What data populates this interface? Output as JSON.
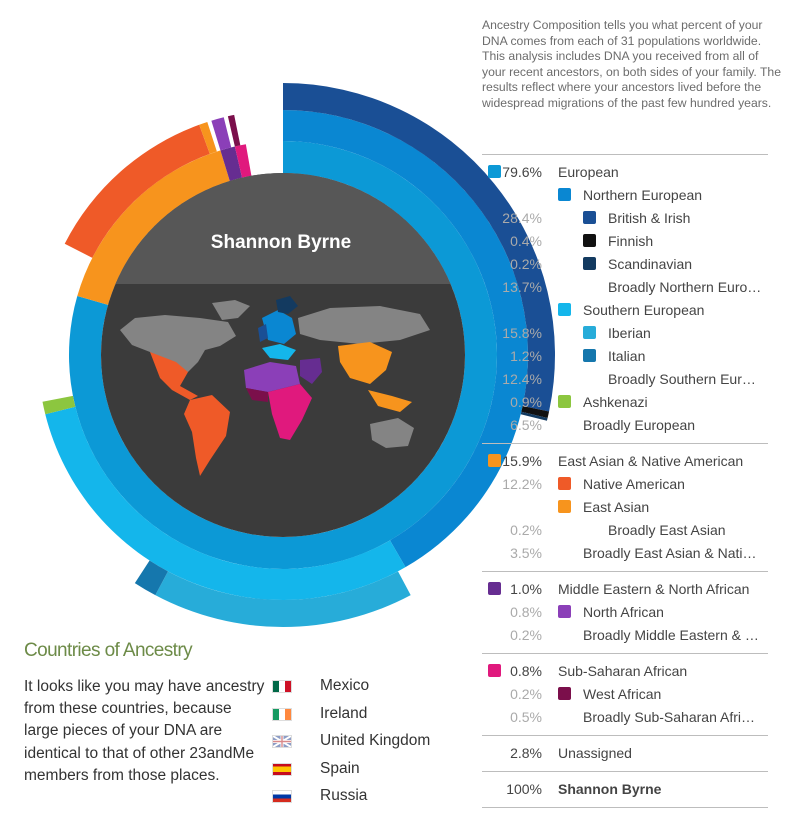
{
  "header": {
    "name": "Shannon Byrne",
    "intro": "Ancestry Composition tells you what percent of your DNA comes from each of 31 populations worldwide. This analysis includes DNA you received from all of your recent ancestors, on both sides of your family. The results reflect where your ancestors lived before the widespread migrations of the past few hundred years."
  },
  "colors": {
    "european": "#0c99d6",
    "northern_european": "#0a87d2",
    "british_irish": "#1a4f95",
    "finnish": "#111111",
    "scandinavian": "#133a60",
    "southern_european": "#14b6eb",
    "iberian": "#27acd9",
    "italian": "#1577ad",
    "ashkenazi": "#8cc63f",
    "east_asian_native_american": "#f7941d",
    "native_american": "#ef5a28",
    "east_asian": "#f7941d",
    "middle_eastern": "#662d91",
    "north_african": "#8b3fb8",
    "sub_saharan": "#e0197d",
    "west_african": "#7b0f4b",
    "map_gray": "#848484",
    "center_dark": "#3b3b3b",
    "center_header": "#575757"
  },
  "chart_data": {
    "type": "sunburst",
    "title": "Shannon Byrne",
    "rings": {
      "inner": [
        {
          "name": "European",
          "value": 79.6
        },
        {
          "name": "East Asian & Native American",
          "value": 15.9
        },
        {
          "name": "Middle Eastern & North African",
          "value": 1.0
        },
        {
          "name": "Sub-Saharan African",
          "value": 0.8
        },
        {
          "name": "Unassigned",
          "value": 2.8
        }
      ],
      "middle": [
        {
          "name": "Northern European",
          "parent": "European"
        },
        {
          "name": "Southern European",
          "parent": "European"
        },
        {
          "name": "Ashkenazi",
          "value": 0.9,
          "parent": "European"
        },
        {
          "name": "Native American",
          "value": 12.2,
          "parent": "East Asian & Native American"
        },
        {
          "name": "East Asian",
          "parent": "East Asian & Native American"
        },
        {
          "name": "North African",
          "value": 0.8,
          "parent": "Middle Eastern & North African"
        },
        {
          "name": "West African",
          "value": 0.2,
          "parent": "Sub-Saharan African"
        }
      ],
      "outer": [
        {
          "name": "British & Irish",
          "value": 28.4
        },
        {
          "name": "Finnish",
          "value": 0.4
        },
        {
          "name": "Scandinavian",
          "value": 0.2
        },
        {
          "name": "Iberian",
          "value": 15.8
        },
        {
          "name": "Italian",
          "value": 1.2
        }
      ]
    }
  },
  "legend": {
    "groups": [
      {
        "rows": [
          {
            "level": 0,
            "pct": "79.6%",
            "label": "European",
            "color": "#0c99d6"
          },
          {
            "level": 1,
            "pct": "",
            "label": "Northern European",
            "color": "#0a87d2"
          },
          {
            "level": 2,
            "pct": "28.4%",
            "label": "British & Irish",
            "color": "#1a4f95"
          },
          {
            "level": 2,
            "pct": "0.4%",
            "label": "Finnish",
            "color": "#111111"
          },
          {
            "level": 2,
            "pct": "0.2%",
            "label": "Scandinavian",
            "color": "#133a60"
          },
          {
            "level": 2,
            "pct": "13.7%",
            "label": "Broadly Northern Euro…",
            "color": ""
          },
          {
            "level": 1,
            "pct": "",
            "label": "Southern European",
            "color": "#14b6eb"
          },
          {
            "level": 2,
            "pct": "15.8%",
            "label": "Iberian",
            "color": "#27acd9"
          },
          {
            "level": 2,
            "pct": "1.2%",
            "label": "Italian",
            "color": "#1577ad"
          },
          {
            "level": 2,
            "pct": "12.4%",
            "label": "Broadly Southern Eur…",
            "color": ""
          },
          {
            "level": 1,
            "pct": "0.9%",
            "label": "Ashkenazi",
            "color": "#8cc63f"
          },
          {
            "level": 1,
            "pct": "6.5%",
            "label": "Broadly European",
            "color": ""
          }
        ]
      },
      {
        "rows": [
          {
            "level": 0,
            "pct": "15.9%",
            "label": "East Asian & Native American",
            "color": "#f7941d"
          },
          {
            "level": 1,
            "pct": "12.2%",
            "label": "Native American",
            "color": "#ef5a28"
          },
          {
            "level": 1,
            "pct": "",
            "label": "East Asian",
            "color": "#f7941d"
          },
          {
            "level": 2,
            "pct": "0.2%",
            "label": "Broadly East Asian",
            "color": ""
          },
          {
            "level": 1,
            "pct": "3.5%",
            "label": "Broadly East Asian & Nati…",
            "color": ""
          }
        ]
      },
      {
        "rows": [
          {
            "level": 0,
            "pct": "1.0%",
            "label": "Middle Eastern & North African",
            "color": "#662d91"
          },
          {
            "level": 1,
            "pct": "0.8%",
            "label": "North African",
            "color": "#8b3fb8"
          },
          {
            "level": 1,
            "pct": "0.2%",
            "label": "Broadly Middle Eastern & …",
            "color": ""
          }
        ]
      },
      {
        "rows": [
          {
            "level": 0,
            "pct": "0.8%",
            "label": "Sub-Saharan African",
            "color": "#e0197d"
          },
          {
            "level": 1,
            "pct": "0.2%",
            "label": "West African",
            "color": "#7b0f4b"
          },
          {
            "level": 1,
            "pct": "0.5%",
            "label": "Broadly Sub-Saharan Afri…",
            "color": ""
          }
        ]
      },
      {
        "rows": [
          {
            "level": 0,
            "pct": "2.8%",
            "label": "Unassigned",
            "color": ""
          }
        ]
      },
      {
        "total": true,
        "rows": [
          {
            "level": 0,
            "pct": "100%",
            "label": "Shannon Byrne",
            "color": ""
          }
        ]
      }
    ]
  },
  "countries": {
    "title": "Countries of Ancestry",
    "text": "It looks like you may have ancestry from these countries, because large pieces of your DNA are identical to that of other 23andMe members from those places.",
    "items": [
      {
        "name": "Mexico",
        "flag": "mexico-flag-icon"
      },
      {
        "name": "Ireland",
        "flag": "ireland-flag-icon"
      },
      {
        "name": "United Kingdom",
        "flag": "uk-flag-icon"
      },
      {
        "name": "Spain",
        "flag": "spain-flag-icon"
      },
      {
        "name": "Russia",
        "flag": "russia-flag-icon"
      }
    ]
  }
}
